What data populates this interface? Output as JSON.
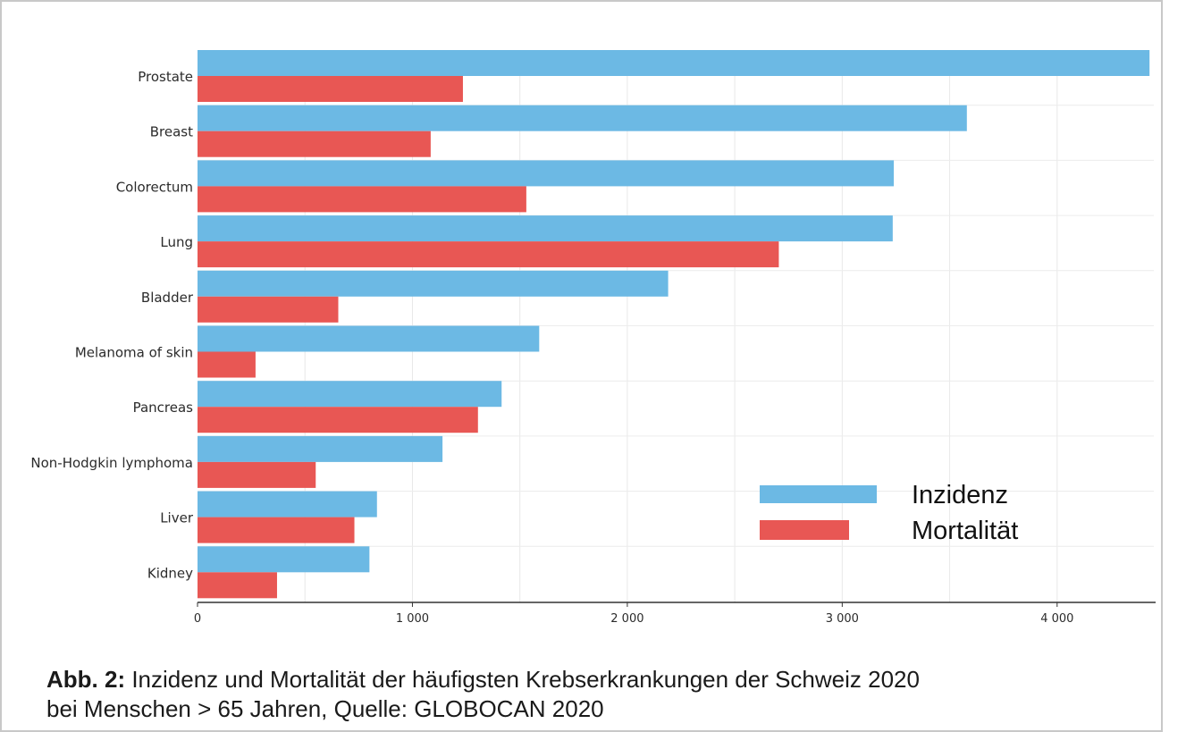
{
  "chart_data": {
    "type": "bar",
    "orientation": "horizontal",
    "categories": [
      "Prostate",
      "Breast",
      "Colorectum",
      "Lung",
      "Bladder",
      "Melanoma of skin",
      "Pancreas",
      "Non-Hodgkin lymphoma",
      "Liver",
      "Kidney"
    ],
    "series": [
      {
        "name": "Inzidenz",
        "color": "#6cb9e4",
        "values": [
          4430,
          3580,
          3240,
          3235,
          2190,
          1590,
          1415,
          1140,
          835,
          800
        ]
      },
      {
        "name": "Mortalität",
        "color": "#e85754",
        "values": [
          1235,
          1085,
          1530,
          2705,
          655,
          270,
          1305,
          550,
          730,
          370
        ]
      }
    ],
    "xlim": [
      0,
      4450
    ],
    "xticks": [
      0,
      1000,
      2000,
      3000,
      4000
    ],
    "xtick_labels": [
      "0",
      "1 000",
      "2 000",
      "3 000",
      "4 000"
    ],
    "grid": true,
    "legend_position": "bottom-right"
  },
  "caption": {
    "label": "Abb. 2:",
    "text": " Inzidenz und Mortalität der häufigsten Krebserkrankungen der Schweiz 2020",
    "line2": "bei Menschen > 65 Jahren, Quelle: GLOBOCAN 2020"
  }
}
